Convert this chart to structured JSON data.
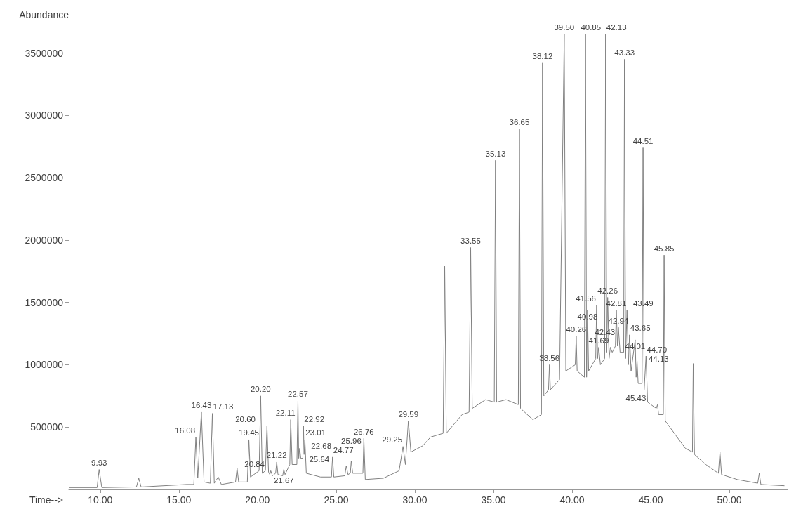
{
  "chart_data": {
    "type": "line",
    "xlabel": "Time-->",
    "ylabel": "Abundance",
    "color": "#808080",
    "x": [
      8.0,
      9.8,
      9.93,
      10.1,
      12.3,
      12.45,
      12.6,
      15.5,
      15.95,
      16.08,
      16.2,
      16.43,
      16.6,
      17.0,
      17.13,
      17.25,
      17.5,
      17.7,
      18.6,
      18.7,
      18.8,
      19.35,
      19.45,
      19.55,
      20.1,
      20.2,
      20.3,
      20.5,
      20.6,
      20.7,
      20.78,
      20.84,
      20.95,
      21.15,
      21.22,
      21.3,
      21.6,
      21.67,
      21.75,
      22.05,
      22.11,
      22.2,
      22.5,
      22.57,
      22.62,
      22.68,
      22.75,
      22.88,
      22.92,
      22.96,
      23.01,
      23.1,
      24.0,
      24.7,
      24.77,
      24.85,
      25.55,
      25.64,
      25.75,
      25.9,
      25.96,
      26.05,
      26.7,
      26.76,
      26.85,
      28.0,
      29.0,
      29.25,
      29.4,
      29.59,
      29.75,
      30.5,
      31.0,
      31.8,
      31.9,
      32.0,
      33.0,
      33.45,
      33.55,
      33.65,
      34.5,
      35.05,
      35.13,
      35.2,
      35.8,
      36.58,
      36.65,
      36.72,
      37.5,
      38.05,
      38.12,
      38.2,
      38.5,
      38.56,
      38.62,
      39.2,
      39.5,
      39.6,
      40.2,
      40.26,
      40.32,
      40.78,
      40.85,
      40.92,
      40.98,
      41.05,
      41.5,
      41.56,
      41.62,
      41.69,
      41.8,
      42.07,
      42.13,
      42.2,
      42.26,
      42.35,
      42.43,
      42.55,
      42.75,
      42.81,
      42.88,
      42.94,
      43.05,
      43.28,
      43.33,
      43.4,
      43.49,
      43.58,
      43.65,
      43.75,
      44.01,
      44.07,
      44.13,
      44.2,
      44.45,
      44.51,
      44.58,
      44.7,
      44.8,
      45.35,
      45.43,
      45.5,
      45.8,
      45.85,
      45.92,
      46.5,
      47.2,
      47.65,
      47.7,
      47.78,
      48.5,
      49.3,
      49.4,
      49.5,
      50.5,
      51.8,
      51.9,
      52.0,
      53.5
    ],
    "values": [
      15000,
      15000,
      160000,
      15000,
      20000,
      90000,
      20000,
      40000,
      40000,
      420000,
      90000,
      620000,
      60000,
      50000,
      610000,
      50000,
      100000,
      40000,
      60000,
      170000,
      60000,
      60000,
      400000,
      100000,
      150000,
      750000,
      130000,
      150000,
      510000,
      140000,
      120000,
      150000,
      110000,
      130000,
      220000,
      120000,
      110000,
      160000,
      120000,
      200000,
      560000,
      200000,
      200000,
      710000,
      250000,
      330000,
      250000,
      250000,
      510000,
      280000,
      400000,
      130000,
      100000,
      100000,
      260000,
      100000,
      110000,
      190000,
      120000,
      130000,
      230000,
      130000,
      130000,
      410000,
      80000,
      90000,
      150000,
      345000,
      200000,
      550000,
      300000,
      350000,
      420000,
      450000,
      1790000,
      450000,
      600000,
      620000,
      1940000,
      650000,
      720000,
      700000,
      2640000,
      700000,
      720000,
      680000,
      2890000,
      650000,
      560000,
      600000,
      3420000,
      750000,
      800000,
      1000000,
      800000,
      880000,
      3650000,
      950000,
      1000000,
      1230000,
      950000,
      900000,
      3650000,
      900000,
      1440000,
      950000,
      1050000,
      1480000,
      1050000,
      1140000,
      1000000,
      1050000,
      3650000,
      1100000,
      1540000,
      1050000,
      1140000,
      1100000,
      1150000,
      1440000,
      1150000,
      1300000,
      1100000,
      1100000,
      3450000,
      1050000,
      1440000,
      1000000,
      1240000,
      950000,
      1200000,
      900000,
      1030000,
      850000,
      850000,
      2740000,
      800000,
      1070000,
      700000,
      650000,
      680000,
      600000,
      600000,
      1880000,
      550000,
      450000,
      330000,
      300000,
      1010000,
      280000,
      200000,
      130000,
      300000,
      120000,
      80000,
      50000,
      130000,
      40000,
      30000
    ],
    "xlim": [
      8,
      53.7
    ],
    "xticks": [
      {
        "value": 10,
        "label": "10.00"
      },
      {
        "value": 15,
        "label": "15.00"
      },
      {
        "value": 20,
        "label": "20.00"
      },
      {
        "value": 25,
        "label": "25.00"
      },
      {
        "value": 30,
        "label": "30.00"
      },
      {
        "value": 35,
        "label": "35.00"
      },
      {
        "value": 40,
        "label": "40.00"
      },
      {
        "value": 45,
        "label": "45.00"
      },
      {
        "value": 50,
        "label": "50.00"
      }
    ],
    "ylim": [
      0,
      3700000
    ],
    "yticks": [
      500000,
      1000000,
      1500000,
      2000000,
      2500000,
      3000000,
      3500000
    ],
    "annotations": [
      {
        "text": "9.93",
        "x": 9.93,
        "y": 160000
      },
      {
        "text": "16.08",
        "x": 16.08,
        "y": 420000
      },
      {
        "text": "16.43",
        "x": 16.43,
        "y": 620000
      },
      {
        "text": "17.13",
        "x": 17.13,
        "y": 610000
      },
      {
        "text": "19.45",
        "x": 19.45,
        "y": 400000
      },
      {
        "text": "20.20",
        "x": 20.2,
        "y": 750000
      },
      {
        "text": "20.60",
        "x": 20.6,
        "y": 510000
      },
      {
        "text": "20.84",
        "x": 20.84,
        "y": 150000
      },
      {
        "text": "21.22",
        "x": 21.22,
        "y": 220000
      },
      {
        "text": "21.67",
        "x": 21.67,
        "y": 160000
      },
      {
        "text": "22.11",
        "x": 22.11,
        "y": 560000
      },
      {
        "text": "22.57",
        "x": 22.57,
        "y": 710000
      },
      {
        "text": "22.68",
        "x": 22.68,
        "y": 330000
      },
      {
        "text": "22.92",
        "x": 22.92,
        "y": 510000
      },
      {
        "text": "23.01",
        "x": 23.01,
        "y": 400000
      },
      {
        "text": "24.77",
        "x": 24.77,
        "y": 260000
      },
      {
        "text": "25.64",
        "x": 25.64,
        "y": 190000
      },
      {
        "text": "25.96",
        "x": 25.96,
        "y": 230000
      },
      {
        "text": "26.76",
        "x": 26.76,
        "y": 410000
      },
      {
        "text": "29.25",
        "x": 29.25,
        "y": 345000
      },
      {
        "text": "29.59",
        "x": 29.59,
        "y": 550000
      },
      {
        "text": "33.55",
        "x": 33.55,
        "y": 1940000
      },
      {
        "text": "35.13",
        "x": 35.13,
        "y": 2640000
      },
      {
        "text": "36.65",
        "x": 36.65,
        "y": 2890000
      },
      {
        "text": "38.12",
        "x": 38.12,
        "y": 3420000
      },
      {
        "text": "38.56",
        "x": 38.56,
        "y": 1000000
      },
      {
        "text": "39.50",
        "x": 39.5,
        "y": 3650000
      },
      {
        "text": "40.26",
        "x": 40.26,
        "y": 1230000
      },
      {
        "text": "40.85",
        "x": 40.85,
        "y": 3650000
      },
      {
        "text": "40.98",
        "x": 40.98,
        "y": 1440000
      },
      {
        "text": "41.56",
        "x": 41.56,
        "y": 1480000
      },
      {
        "text": "41.69",
        "x": 41.69,
        "y": 1140000
      },
      {
        "text": "42.13",
        "x": 42.13,
        "y": 3650000
      },
      {
        "text": "42.26",
        "x": 42.26,
        "y": 1540000
      },
      {
        "text": "42.43",
        "x": 42.43,
        "y": 1140000
      },
      {
        "text": "42.81",
        "x": 42.81,
        "y": 1440000
      },
      {
        "text": "42.94",
        "x": 42.94,
        "y": 1300000
      },
      {
        "text": "43.33",
        "x": 43.33,
        "y": 3450000
      },
      {
        "text": "43.49",
        "x": 43.49,
        "y": 1440000
      },
      {
        "text": "43.65",
        "x": 43.65,
        "y": 1240000
      },
      {
        "text": "44.01",
        "x": 44.01,
        "y": 1200000
      },
      {
        "text": "44.13",
        "x": 44.13,
        "y": 1030000
      },
      {
        "text": "44.51",
        "x": 44.51,
        "y": 2740000
      },
      {
        "text": "44.70",
        "x": 44.7,
        "y": 1070000
      },
      {
        "text": "45.43",
        "x": 45.43,
        "y": 680000
      },
      {
        "text": "45.85",
        "x": 45.85,
        "y": 1880000
      }
    ]
  }
}
